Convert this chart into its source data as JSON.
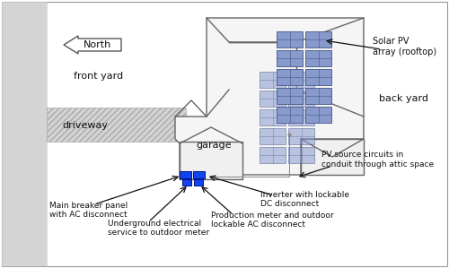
{
  "bg_color": "#ffffff",
  "house_edge": "#666666",
  "solar_panel_face": "#8899cc",
  "solar_panel_edge": "#445588",
  "blue_box_color": "#1144ee",
  "arrow_color": "#111111",
  "text_color": "#111111",
  "labels": {
    "north": "North",
    "front_yard": "front yard",
    "back_yard": "back yard",
    "driveway": "driveway",
    "garage": "garage",
    "solar_pv": "Solar PV\narray (rooftop)",
    "pv_source": "PV source circuits in\nconduit through attic space",
    "main_breaker": "Main breaker panel\nwith AC disconnect",
    "underground": "Underground electrical\nservice to outdoor meter",
    "production_meter": "Production meter and outdoor\nlockable AC disconnect",
    "inverter": "Inverter with lockable\nDC disconnect"
  }
}
